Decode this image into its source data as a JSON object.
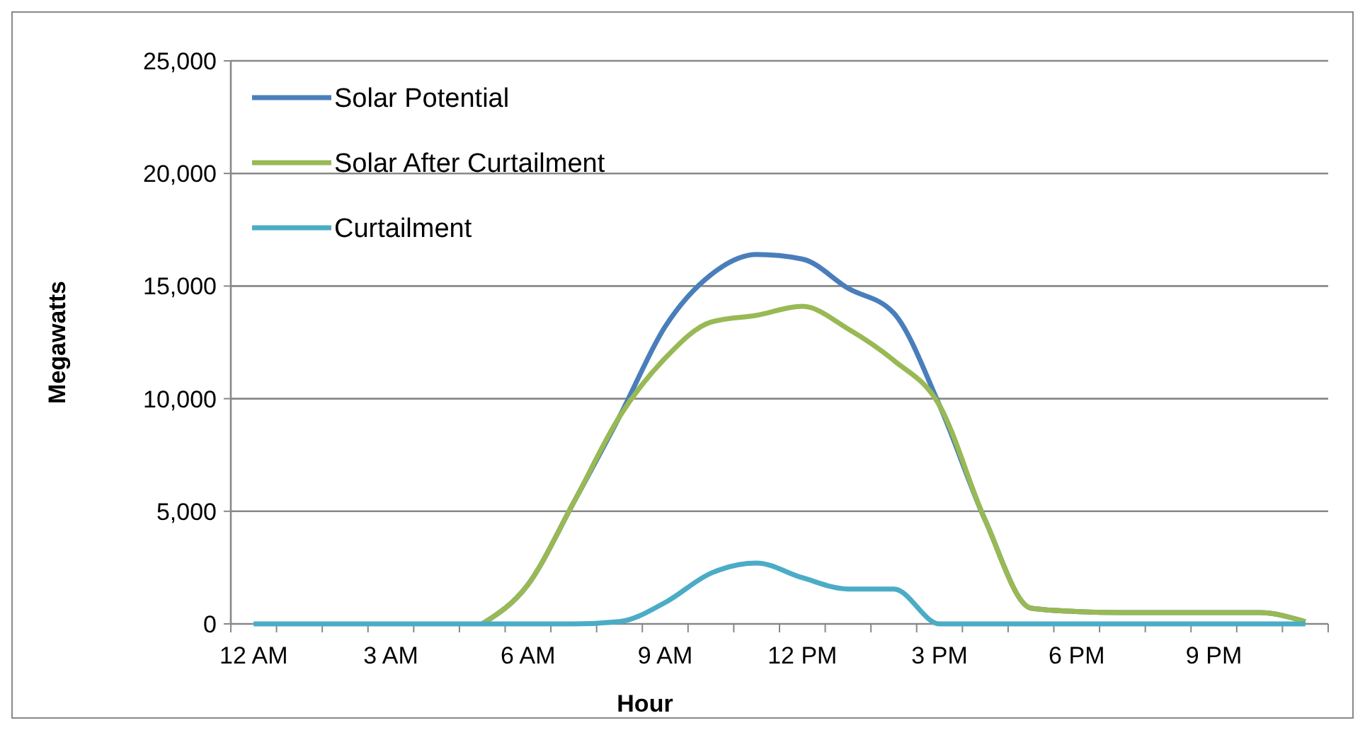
{
  "chart_data": {
    "type": "line",
    "xlabel": "Hour",
    "ylabel": "Megawatts",
    "categories": [
      "12 AM",
      null,
      null,
      "3 AM",
      null,
      null,
      "6 AM",
      null,
      null,
      "9 AM",
      null,
      null,
      "12 PM",
      null,
      null,
      "3 PM",
      null,
      null,
      "6 PM",
      null,
      null,
      "9 PM",
      null,
      null
    ],
    "series": [
      {
        "name": "Solar Potential",
        "color": "#4a7ebb",
        "values": [
          null,
          null,
          null,
          null,
          null,
          0,
          1750,
          5400,
          9200,
          13200,
          15500,
          16400,
          16200,
          14900,
          13800,
          9700,
          4600,
          700,
          550,
          500,
          500,
          500,
          500,
          100
        ]
      },
      {
        "name": "Solar After Curtailment",
        "color": "#98b954",
        "values": [
          null,
          null,
          null,
          null,
          null,
          0,
          1750,
          5400,
          9200,
          11800,
          13400,
          13700,
          14100,
          13100,
          11700,
          9700,
          4600,
          700,
          550,
          500,
          500,
          500,
          500,
          100
        ]
      },
      {
        "name": "Curtailment",
        "color": "#4bacc6",
        "values": [
          0,
          0,
          0,
          0,
          0,
          0,
          0,
          0,
          100,
          950,
          2250,
          2700,
          2050,
          1550,
          1550,
          0,
          0,
          0,
          0,
          0,
          0,
          0,
          0,
          0
        ]
      }
    ],
    "ylim": [
      0,
      25000
    ],
    "yticks": [
      {
        "value": 0,
        "label": "0"
      },
      {
        "value": 5000,
        "label": "5,000"
      },
      {
        "value": 10000,
        "label": "10,000"
      },
      {
        "value": 15000,
        "label": "15,000"
      },
      {
        "value": 20000,
        "label": "20,000"
      },
      {
        "value": 25000,
        "label": "25,000"
      }
    ],
    "grid": "y",
    "legend": "top left",
    "marker": "none",
    "line_style": "solid"
  }
}
